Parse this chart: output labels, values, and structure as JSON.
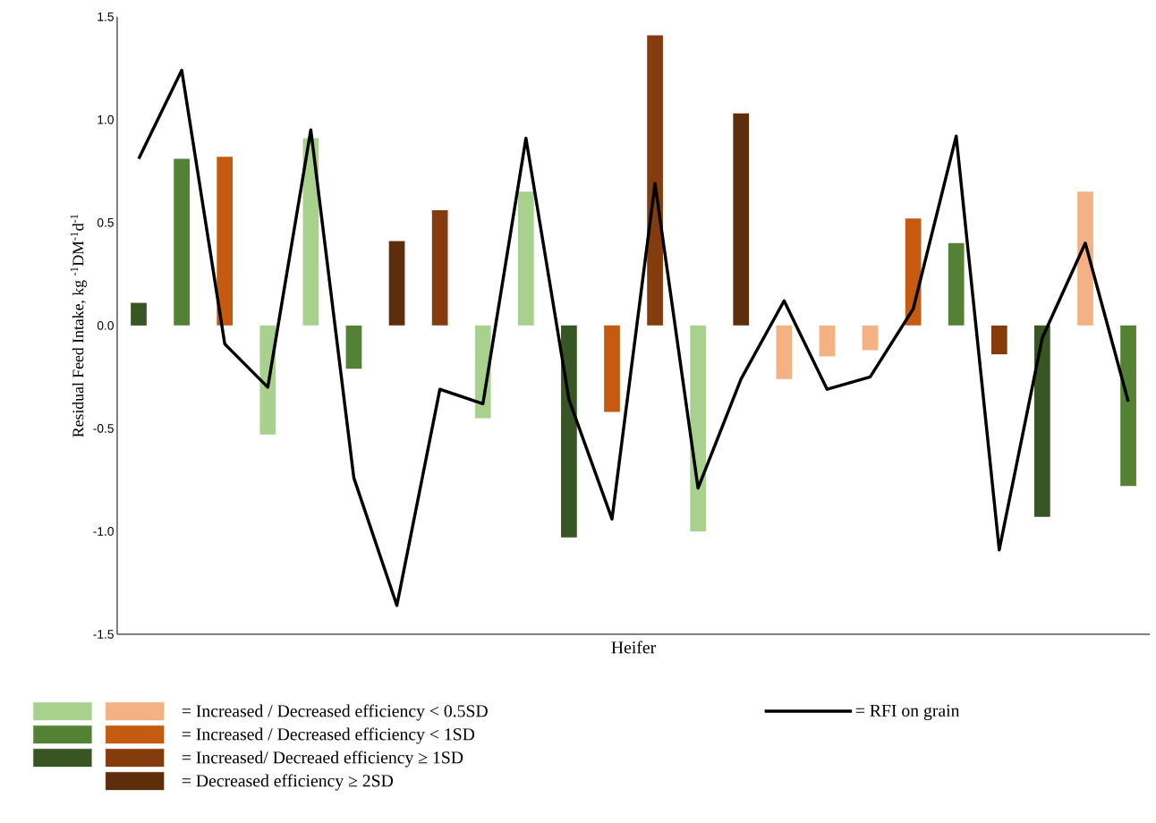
{
  "chart_data": {
    "type": "bar",
    "xlabel": "Heifer",
    "ylabel": "Residual Feed Intake, kg $^{-1}$DM$^{-1}$d$^{-1}$",
    "categories": [
      null,
      null,
      null,
      null,
      null,
      null,
      null,
      null,
      null,
      null,
      null,
      null,
      null,
      null,
      null,
      null,
      null,
      null,
      null,
      null,
      null,
      null,
      null,
      null
    ],
    "ylim": [
      -1.5,
      1.5
    ],
    "yticks": [
      {
        "value": -1.5,
        "label": "-1.5"
      },
      {
        "value": -1,
        "label": "-1.0"
      },
      {
        "value": -0.5,
        "label": "-0.5"
      },
      {
        "value": 0,
        "label": "0.0"
      },
      {
        "value": 0.5,
        "label": "0.5"
      },
      {
        "value": 1,
        "label": "1.0"
      },
      {
        "value": 1.5,
        "label": "1.5"
      }
    ],
    "grid": false,
    "legend": "bottom",
    "series": [
      {
        "name": "= Increased / Decreased efficiency < 0.5SD",
        "values": [
          null,
          null,
          null,
          -0.53,
          0.91,
          null,
          null,
          null,
          -0.45,
          0.65,
          null,
          null,
          null,
          -1.0,
          null,
          -0.26,
          -0.15,
          -0.12,
          null,
          null,
          null,
          null,
          0.65,
          null
        ],
        "colors": [
          null,
          null,
          null,
          "#a9d18e",
          "#a9d18e",
          null,
          null,
          null,
          "#a9d18e",
          "#a9d18e",
          null,
          null,
          null,
          "#a9d18e",
          null,
          "#f4b183",
          "#f4b183",
          "#f4b183",
          null,
          null,
          null,
          null,
          "#f4b183",
          null
        ]
      },
      {
        "name": "= Increased / Decreased efficiency < 1SD",
        "values": [
          null,
          0.81,
          0.82,
          null,
          null,
          -0.21,
          null,
          null,
          null,
          null,
          null,
          -0.42,
          null,
          null,
          null,
          null,
          null,
          null,
          0.52,
          0.4,
          null,
          null,
          null,
          -0.78
        ],
        "colors": [
          null,
          "#548235",
          "#c55a11",
          null,
          null,
          "#548235",
          null,
          null,
          null,
          null,
          null,
          "#c55a11",
          null,
          null,
          null,
          null,
          null,
          null,
          "#c55a11",
          "#548235",
          null,
          null,
          null,
          "#548235"
        ]
      },
      {
        "name": "= Increased/ Decreaed efficiency ≥ 1SD",
        "values": [
          0.11,
          null,
          null,
          null,
          null,
          null,
          null,
          0.56,
          null,
          null,
          -1.03,
          null,
          1.41,
          null,
          null,
          null,
          null,
          null,
          null,
          null,
          -0.14,
          -0.93,
          null,
          null
        ],
        "colors": [
          "#375623",
          null,
          null,
          null,
          null,
          null,
          null,
          "#843c0c",
          null,
          null,
          "#375623",
          null,
          "#843c0c",
          null,
          null,
          null,
          null,
          null,
          null,
          null,
          "#843c0c",
          "#375623",
          null,
          null
        ]
      },
      {
        "name": "= Decreased efficiency ≥ 2SD",
        "values": [
          null,
          null,
          null,
          null,
          null,
          null,
          0.41,
          null,
          null,
          null,
          null,
          null,
          null,
          null,
          1.03,
          null,
          null,
          null,
          null,
          null,
          null,
          null,
          null,
          null
        ],
        "colors": [
          null,
          null,
          null,
          null,
          null,
          null,
          "#5c2e0b",
          null,
          null,
          null,
          null,
          null,
          null,
          null,
          "#5c2e0b",
          null,
          null,
          null,
          null,
          null,
          null,
          null,
          null,
          null
        ]
      },
      {
        "name": "= RFI on grain",
        "type": "line",
        "color": "#000000",
        "values": [
          0.81,
          1.24,
          -0.09,
          -0.3,
          0.95,
          -0.74,
          -1.36,
          -0.31,
          -0.38,
          0.91,
          -0.36,
          -0.94,
          0.69,
          -0.79,
          -0.26,
          0.12,
          -0.31,
          -0.25,
          0.08,
          0.92,
          -1.09,
          -0.06,
          0.4,
          -0.37
        ]
      }
    ]
  }
}
